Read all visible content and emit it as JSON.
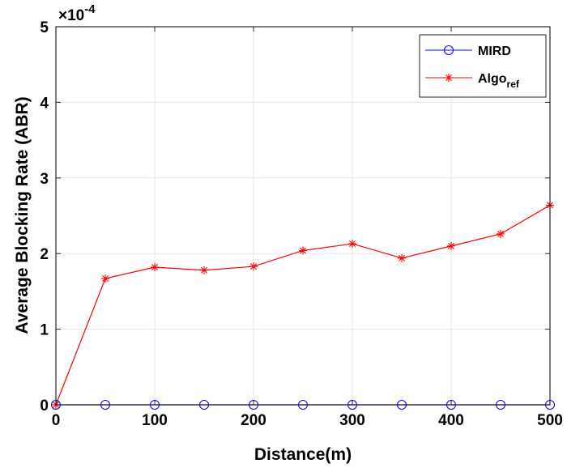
{
  "chart_data": {
    "type": "line",
    "xlabel": "Distance(m)",
    "ylabel": "Average Blocking Rate (ABR)",
    "exponent_label": "×10",
    "exponent_power": "-4",
    "xlim": [
      0,
      500
    ],
    "ylim": [
      0,
      5
    ],
    "xticks": [
      0,
      100,
      200,
      300,
      400,
      500
    ],
    "yticks": [
      0,
      1,
      2,
      3,
      4,
      5
    ],
    "x": [
      0,
      50,
      100,
      150,
      200,
      250,
      300,
      350,
      400,
      450,
      500
    ],
    "grid": true,
    "legend_position": "top-right",
    "series": [
      {
        "name": "MIRD",
        "color": "#0000ff",
        "marker": "circle",
        "values": [
          0,
          0,
          0,
          0,
          0,
          0,
          0,
          0,
          0,
          0,
          0
        ]
      },
      {
        "name": "Algo",
        "name_subscript": "ref",
        "color": "#ff0000",
        "marker": "asterisk",
        "values": [
          0,
          1.67,
          1.82,
          1.78,
          1.83,
          2.04,
          2.13,
          1.94,
          2.1,
          2.26,
          2.64
        ]
      }
    ]
  }
}
